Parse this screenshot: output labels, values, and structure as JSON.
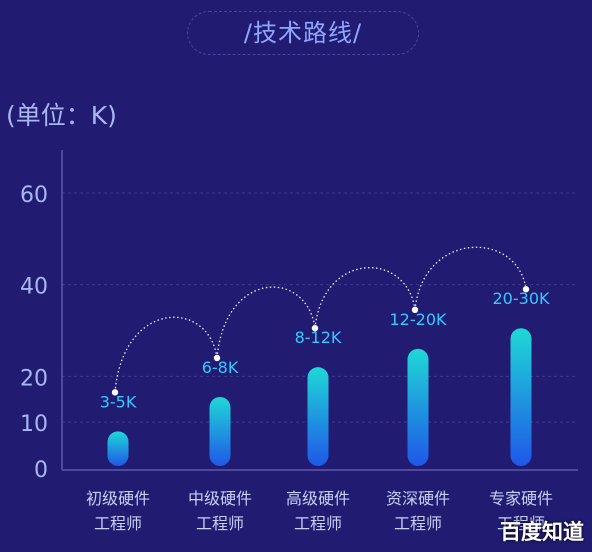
{
  "header": {
    "title": "/技术路线/",
    "unit": "(单位：K)"
  },
  "watermark": "百度知道",
  "chart_data": {
    "type": "bar",
    "categories": [
      [
        "初级硬件",
        "工程师"
      ],
      [
        "中级硬件",
        "工程师"
      ],
      [
        "高级硬件",
        "工程师"
      ],
      [
        "资深硬件",
        "工程师"
      ],
      [
        "专家硬件",
        "工程师"
      ]
    ],
    "values": [
      8,
      15.5,
      22,
      26,
      30.5
    ],
    "range_labels": [
      "3-5K",
      "6-8K",
      "8-12K",
      "12-20K",
      "20-30K"
    ],
    "ylim": [
      0,
      70
    ],
    "yticks": [
      0,
      10,
      20,
      40,
      60
    ],
    "grid": true,
    "colors": {
      "bar_top": "#1fd8d6",
      "bar_bottom": "#1f57e8",
      "label": "#36c8ff",
      "axis_text": "#a9b6f2"
    }
  }
}
